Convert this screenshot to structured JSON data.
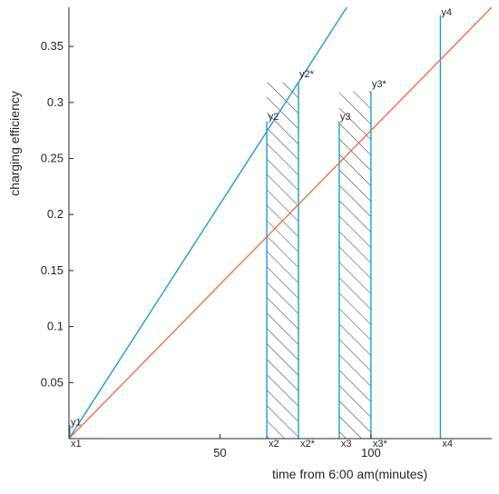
{
  "chart_data": {
    "type": "line",
    "title": "",
    "xlabel": "time from 6:00 am(minutes)",
    "ylabel": "charging efficiency",
    "xlim": [
      0,
      140
    ],
    "ylim": [
      0,
      0.385
    ],
    "x_ticks": [
      {
        "value": 50,
        "label": "50"
      },
      {
        "value": 100,
        "label": "100"
      }
    ],
    "y_ticks": [
      {
        "value": 0.05,
        "label": "0.05"
      },
      {
        "value": 0.1,
        "label": "0.1"
      },
      {
        "value": 0.15,
        "label": "0.15"
      },
      {
        "value": 0.2,
        "label": "0.2"
      },
      {
        "value": 0.25,
        "label": "0.25"
      },
      {
        "value": 0.3,
        "label": "0.3"
      },
      {
        "value": 0.35,
        "label": "0.35"
      }
    ],
    "grid": false,
    "series": [
      {
        "color": "#1f9bd1",
        "x": [
          0,
          92
        ],
        "y": [
          0,
          0.385
        ]
      },
      {
        "color": "#f0703e",
        "x": [
          0,
          140
        ],
        "y": [
          0,
          0.385
        ]
      }
    ],
    "vertical_lines": [
      {
        "x": 0.3,
        "y_top": 0.012,
        "color": "#1f9bd1"
      },
      {
        "x": 65.5,
        "y_top": 0.283,
        "color": "#1f9bd1"
      },
      {
        "x": 76,
        "y_top": 0.318,
        "color": "#1f9bd1"
      },
      {
        "x": 89.5,
        "y_top": 0.283,
        "color": "#1f9bd1"
      },
      {
        "x": 100,
        "y_top": 0.31,
        "color": "#1f9bd1"
      },
      {
        "x": 123,
        "y_top": 0.378,
        "color": "#1f9bd1"
      }
    ],
    "hatched_regions": [
      {
        "x0": 65.5,
        "x1": 76,
        "y_top": 0.318
      },
      {
        "x0": 89.5,
        "x1": 100,
        "y_top": 0.31
      }
    ],
    "point_labels": [
      {
        "text": "y1",
        "x": 0.6,
        "y": 0.01
      },
      {
        "text": "y2",
        "x": 66,
        "y": 0.283
      },
      {
        "text": "y2*",
        "x": 76.3,
        "y": 0.321
      },
      {
        "text": "y3",
        "x": 89.8,
        "y": 0.283
      },
      {
        "text": "y3*",
        "x": 100.3,
        "y": 0.312
      },
      {
        "text": "y4",
        "x": 123.3,
        "y": 0.376
      }
    ],
    "x_markers": [
      {
        "text": "x1",
        "x": 0
      },
      {
        "text": "x2",
        "x": 65.5
      },
      {
        "text": "x2*",
        "x": 76
      },
      {
        "text": "x3",
        "x": 89.5
      },
      {
        "text": "x3*",
        "x": 100
      },
      {
        "text": "x4",
        "x": 123
      }
    ]
  }
}
